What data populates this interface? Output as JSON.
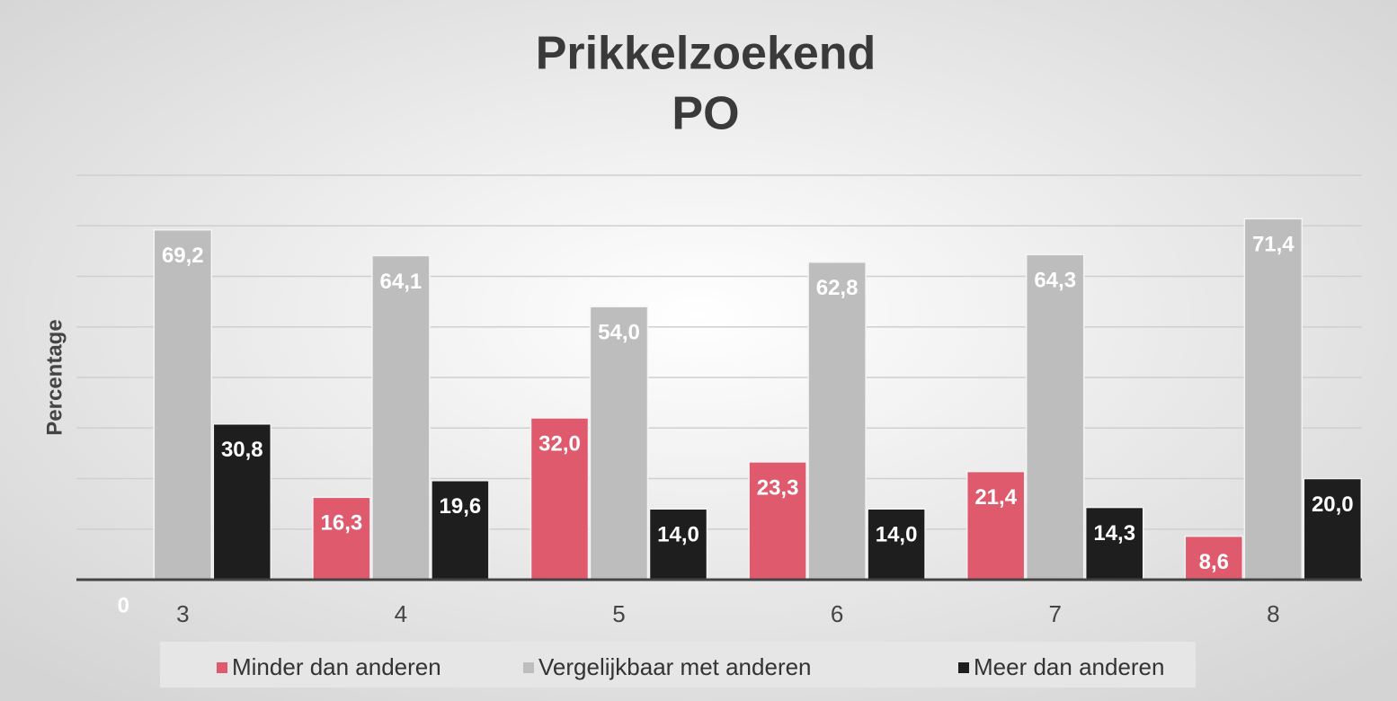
{
  "chart_data": {
    "type": "bar",
    "title": [
      "Prikkelzoekend",
      "PO"
    ],
    "y_label": "Percentage",
    "categories": [
      "3",
      "4",
      "5",
      "6",
      "7",
      "8"
    ],
    "series": [
      {
        "name": "Minder dan anderen",
        "color": "#e05a6e",
        "values": [
          0,
          16.3,
          32.0,
          23.3,
          21.4,
          8.6
        ],
        "value_labels": [
          "0",
          "16,3",
          "32,0",
          "23,3",
          "21,4",
          "8,6"
        ]
      },
      {
        "name": "Vergelijkbaar met anderen",
        "color": "#bdbdbd",
        "values": [
          69.2,
          64.1,
          54.0,
          62.8,
          64.3,
          71.4
        ],
        "value_labels": [
          "69,2",
          "64,1",
          "54,0",
          "62,8",
          "64,3",
          "71,4"
        ]
      },
      {
        "name": "Meer dan anderen",
        "color": "#1e1e1e",
        "values": [
          30.8,
          19.6,
          14.0,
          14.0,
          14.3,
          20.0
        ],
        "value_labels": [
          "30,8",
          "19,6",
          "14,0",
          "14,0",
          "14,3",
          "20,0"
        ]
      }
    ],
    "ylim": [
      0,
      80
    ],
    "yticks": [
      0,
      10,
      20,
      30,
      40,
      50,
      60,
      70,
      80
    ],
    "grid": true,
    "legend": "bottom"
  }
}
